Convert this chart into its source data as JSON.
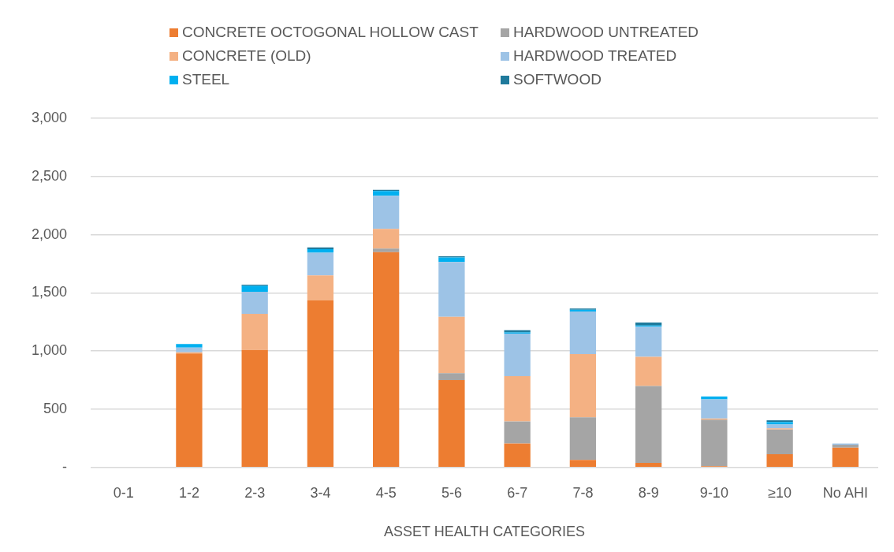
{
  "chart_data": {
    "type": "bar",
    "stacked": true,
    "xlabel": "ASSET HEALTH CATEGORIES",
    "categories": [
      "0-1",
      "1-2",
      "2-3",
      "3-4",
      "4-5",
      "5-6",
      "6-7",
      "7-8",
      "8-9",
      "9-10",
      "≥10",
      "No AHI"
    ],
    "series": [
      {
        "name": "CONCRETE OCTOGONAL HOLLOW CAST",
        "color": "#ed7d31",
        "values": [
          0,
          980,
          1010,
          1435,
          1850,
          750,
          205,
          65,
          40,
          10,
          113,
          170
        ]
      },
      {
        "name": "HARDWOOD UNTREATED",
        "color": "#a5a5a5",
        "values": [
          0,
          null,
          0,
          0,
          30,
          60,
          190,
          365,
          660,
          400,
          212,
          25
        ]
      },
      {
        "name": "CONCRETE (OLD)",
        "color": "#f4b183",
        "values": [
          0,
          10,
          310,
          215,
          170,
          485,
          390,
          545,
          250,
          10,
          10,
          0
        ]
      },
      {
        "name": "HARDWOOD TREATED",
        "color": "#9dc3e6",
        "values": [
          0,
          40,
          190,
          195,
          285,
          470,
          365,
          365,
          260,
          165,
          35,
          10
        ]
      },
      {
        "name": "STEEL",
        "color": "#00b0f0",
        "values": [
          0,
          30,
          50,
          30,
          40,
          40,
          10,
          15,
          10,
          25,
          20,
          0
        ]
      },
      {
        "name": "SOFTWOOD",
        "color": "#1f7a9c",
        "values": [
          0,
          0,
          10,
          15,
          10,
          10,
          20,
          10,
          25,
          0,
          15,
          0
        ]
      }
    ],
    "ylim": [
      0,
      3000
    ],
    "yticks": [
      {
        "value": 0,
        "label": "-"
      },
      {
        "value": 500,
        "label": "500"
      },
      {
        "value": 1000,
        "label": "1,000"
      },
      {
        "value": 1500,
        "label": "1,500"
      },
      {
        "value": 2000,
        "label": "2,000"
      },
      {
        "value": 2500,
        "label": "2,500"
      },
      {
        "value": 3000,
        "label": "3,000"
      }
    ],
    "grid": "y",
    "legend": "top"
  }
}
